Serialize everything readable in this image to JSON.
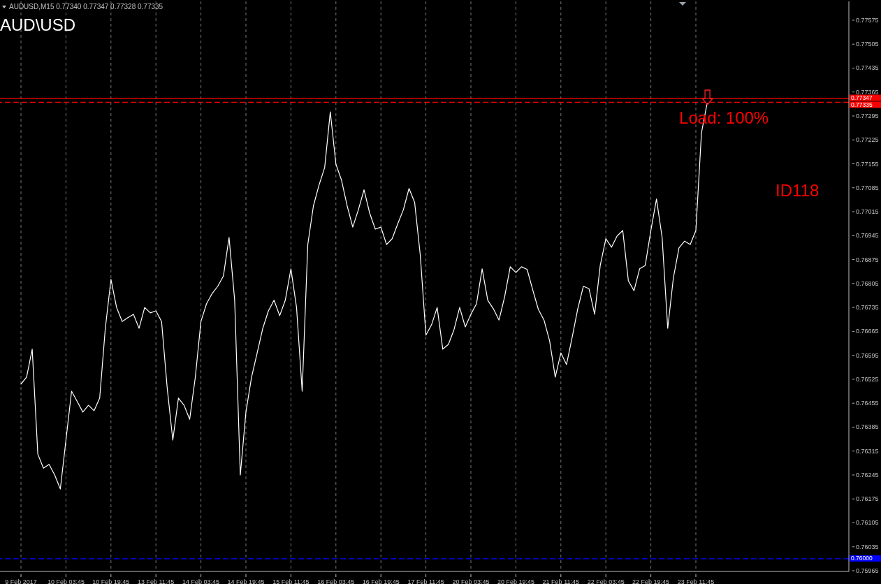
{
  "chart_data": {
    "type": "line",
    "title": "AUD\\USD",
    "subtitle": "AUDUSD,M15  0.77340 0.77347 0.77328 0.77335",
    "categories": [
      "9 Feb 2017",
      null,
      null,
      null,
      null,
      null,
      null,
      null,
      "10 Feb 03:45",
      null,
      null,
      null,
      null,
      null,
      null,
      null,
      "10 Feb 19:45",
      null,
      null,
      null,
      null,
      null,
      null,
      null,
      "13 Feb 11:45",
      null,
      null,
      null,
      null,
      null,
      null,
      null,
      "14 Feb 03:45",
      null,
      null,
      null,
      null,
      null,
      null,
      null,
      "14 Feb 19:45",
      null,
      null,
      null,
      null,
      null,
      null,
      null,
      "15 Feb 11:45",
      null,
      null,
      null,
      null,
      null,
      null,
      null,
      "16 Feb 03:45",
      null,
      null,
      null,
      null,
      null,
      null,
      null,
      "16 Feb 19:45",
      null,
      null,
      null,
      null,
      null,
      null,
      null,
      "17 Feb 11:45",
      null,
      null,
      null,
      null,
      null,
      null,
      null,
      "20 Feb 03:45",
      null,
      null,
      null,
      null,
      null,
      null,
      null,
      "20 Feb 19:45",
      null,
      null,
      null,
      null,
      null,
      null,
      null,
      "21 Feb 11:45",
      null,
      null,
      null,
      null,
      null,
      null,
      null,
      "22 Feb 03:45",
      null,
      null,
      null,
      null,
      null,
      null,
      null,
      "22 Feb 19:45",
      null,
      null,
      null,
      null,
      null,
      null,
      null,
      "23 Feb 11:45",
      null,
      null
    ],
    "series": [
      {
        "color": "#ffffff",
        "values": [
          0.76511,
          0.76531,
          0.76613,
          0.76306,
          0.76265,
          0.76276,
          0.76245,
          0.76204,
          0.76347,
          0.7649,
          0.7646,
          0.76429,
          0.76449,
          0.76433,
          0.7647,
          0.76674,
          0.76817,
          0.76735,
          0.76694,
          0.76705,
          0.76715,
          0.76674,
          0.76735,
          0.76719,
          0.76725,
          0.76694,
          0.765,
          0.76347,
          0.7647,
          0.76449,
          0.76408,
          0.76531,
          0.76694,
          0.76746,
          0.76776,
          0.76797,
          0.76827,
          0.7694,
          0.76756,
          0.76245,
          0.76429,
          0.76531,
          0.76602,
          0.76674,
          0.76725,
          0.76756,
          0.76711,
          0.76756,
          0.76848,
          0.76735,
          0.7649,
          0.76919,
          0.77032,
          0.77093,
          0.77144,
          0.77307,
          0.77154,
          0.77107,
          0.77032,
          0.7697,
          0.77021,
          0.77079,
          0.77011,
          0.76964,
          0.7697,
          0.76919,
          0.76936,
          0.7698,
          0.77021,
          0.77083,
          0.77042,
          0.76888,
          0.76654,
          0.76684,
          0.76735,
          0.76613,
          0.76627,
          0.7667,
          0.76735,
          0.76678,
          0.76715,
          0.76746,
          0.76848,
          0.76756,
          0.76731,
          0.76698,
          0.76766,
          0.76854,
          0.76837,
          0.76854,
          0.76846,
          0.76786,
          0.76729,
          0.76698,
          0.76637,
          0.76531,
          0.76602,
          0.76568,
          0.76647,
          0.76731,
          0.76797,
          0.7679,
          0.76715,
          0.76858,
          0.76936,
          0.76911,
          0.76944,
          0.7696,
          0.76813,
          0.76784,
          0.76848,
          0.76858,
          0.7696,
          0.77052,
          0.7694,
          0.76674,
          0.76821,
          0.76909,
          0.76929,
          0.76919,
          0.7696,
          0.77246,
          0.77332
        ]
      }
    ],
    "ylim": [
      0.75963,
      0.7763
    ],
    "yticks": [
      0.77575,
      0.77505,
      0.77435,
      0.77365,
      0.77295,
      0.77225,
      0.77155,
      0.77085,
      0.77015,
      0.76945,
      0.76875,
      0.76805,
      0.76735,
      0.76665,
      0.76595,
      0.76525,
      0.76455,
      0.76385,
      0.76315,
      0.76245,
      0.76175,
      0.76105,
      0.76035,
      0.75965
    ],
    "grid": "x",
    "ref_lines": [
      {
        "axis": "y",
        "value": 0.77347,
        "label": "0.77347",
        "color": "#ff0000",
        "line_style": "solid"
      },
      {
        "axis": "y",
        "value": 0.77335,
        "label": "0.77335",
        "color": "#ff0000",
        "line_style": "dashed"
      },
      {
        "axis": "y",
        "value": 0.76,
        "label": "0.76000",
        "color": "#0000ff",
        "line_style": "dashed"
      }
    ],
    "annotations": [
      "Load: 100%",
      "ID118"
    ]
  }
}
